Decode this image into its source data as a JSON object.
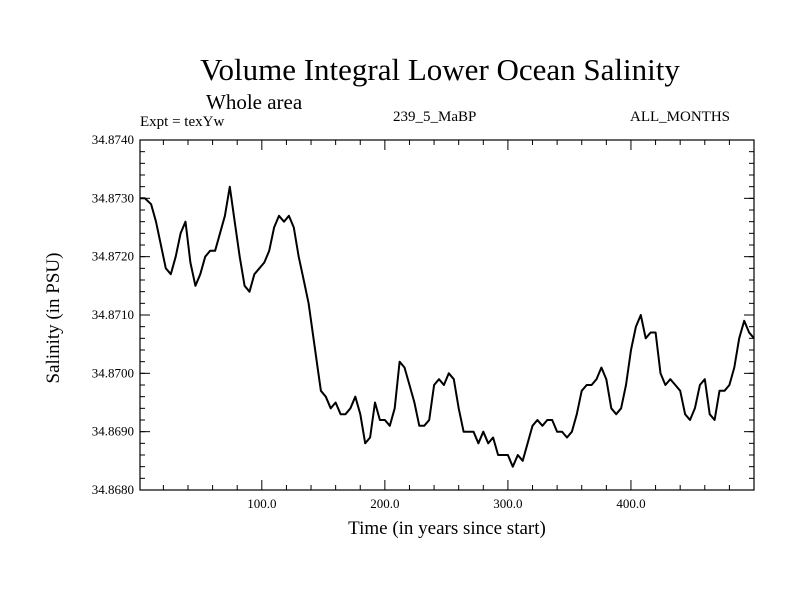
{
  "chart_data": {
    "type": "line",
    "title": "Volume Integral Lower Ocean Salinity",
    "subtitle": "Whole area",
    "annotations": {
      "experiment": "Expt = texYw",
      "run": "239_5_MaBP",
      "months": "ALL_MONTHS"
    },
    "xlabel": "Time (in years since start)",
    "ylabel": "Salinity (in PSU)",
    "xlim": [
      1,
      500
    ],
    "ylim": [
      34.868,
      34.874
    ],
    "xticks": [
      100,
      200,
      300,
      400
    ],
    "xtick_labels": [
      "100.0",
      "200.0",
      "300.0",
      "400.0"
    ],
    "yticks": [
      34.868,
      34.869,
      34.87,
      34.871,
      34.872,
      34.873,
      34.874
    ],
    "ytick_labels": [
      "34.8680",
      "34.8690",
      "34.8700",
      "34.8710",
      "34.8720",
      "34.8730",
      "34.8740"
    ],
    "grid": false,
    "line_color": "#000000",
    "series": [
      {
        "x": [
          1,
          5,
          10,
          14,
          18,
          22,
          26,
          30,
          34,
          38,
          42,
          46,
          50,
          54,
          58,
          62,
          66,
          70,
          74,
          78,
          82,
          86,
          90,
          94,
          98,
          102,
          106,
          110,
          114,
          118,
          122,
          126,
          130,
          134,
          138,
          142,
          146,
          148,
          152,
          156,
          160,
          164,
          168,
          172,
          176,
          180,
          184,
          188,
          192,
          196,
          200,
          204,
          208,
          212,
          216,
          220,
          224,
          228,
          232,
          236,
          240,
          244,
          248,
          252,
          256,
          260,
          264,
          268,
          272,
          276,
          280,
          284,
          288,
          292,
          296,
          300,
          304,
          308,
          312,
          316,
          320,
          324,
          328,
          332,
          336,
          340,
          344,
          348,
          352,
          356,
          360,
          364,
          368,
          372,
          376,
          380,
          384,
          388,
          392,
          396,
          400,
          404,
          408,
          412,
          416,
          420,
          424,
          428,
          432,
          436,
          440,
          444,
          448,
          452,
          456,
          460,
          464,
          468,
          472,
          476,
          480,
          484,
          488,
          492,
          496,
          500
        ],
        "values": [
          34.873,
          34.873,
          34.8729,
          34.8726,
          34.8722,
          34.8718,
          34.8717,
          34.872,
          34.8724,
          34.8726,
          34.8719,
          34.8715,
          34.8717,
          34.872,
          34.8721,
          34.8721,
          34.8724,
          34.8727,
          34.8732,
          34.8726,
          34.872,
          34.8715,
          34.8714,
          34.8717,
          34.8718,
          34.8719,
          34.8721,
          34.8725,
          34.8727,
          34.8726,
          34.8727,
          34.8725,
          34.872,
          34.8716,
          34.8712,
          34.8706,
          34.87,
          34.8697,
          34.8696,
          34.8694,
          34.8695,
          34.8693,
          34.8693,
          34.8694,
          34.8696,
          34.8693,
          34.8688,
          34.8689,
          34.8695,
          34.8692,
          34.8692,
          34.8691,
          34.8694,
          34.8702,
          34.8701,
          34.8698,
          34.8695,
          34.8691,
          34.8691,
          34.8692,
          34.8698,
          34.8699,
          34.8698,
          34.87,
          34.8699,
          34.8694,
          34.869,
          34.869,
          34.869,
          34.8688,
          34.869,
          34.8688,
          34.8689,
          34.8686,
          34.8686,
          34.8686,
          34.8684,
          34.8686,
          34.8685,
          34.8688,
          34.8691,
          34.8692,
          34.8691,
          34.8692,
          34.8692,
          34.869,
          34.869,
          34.8689,
          34.869,
          34.8693,
          34.8697,
          34.8698,
          34.8698,
          34.8699,
          34.8701,
          34.8699,
          34.8694,
          34.8693,
          34.8694,
          34.8698,
          34.8704,
          34.8708,
          34.871,
          34.8706,
          34.8707,
          34.8707,
          34.87,
          34.8698,
          34.8699,
          34.8698,
          34.8697,
          34.8693,
          34.8692,
          34.8694,
          34.8698,
          34.8699,
          34.8693,
          34.8692,
          34.8697,
          34.8697,
          34.8698,
          34.8701,
          34.8706,
          34.8709,
          34.8707,
          34.8706
        ]
      }
    ]
  }
}
